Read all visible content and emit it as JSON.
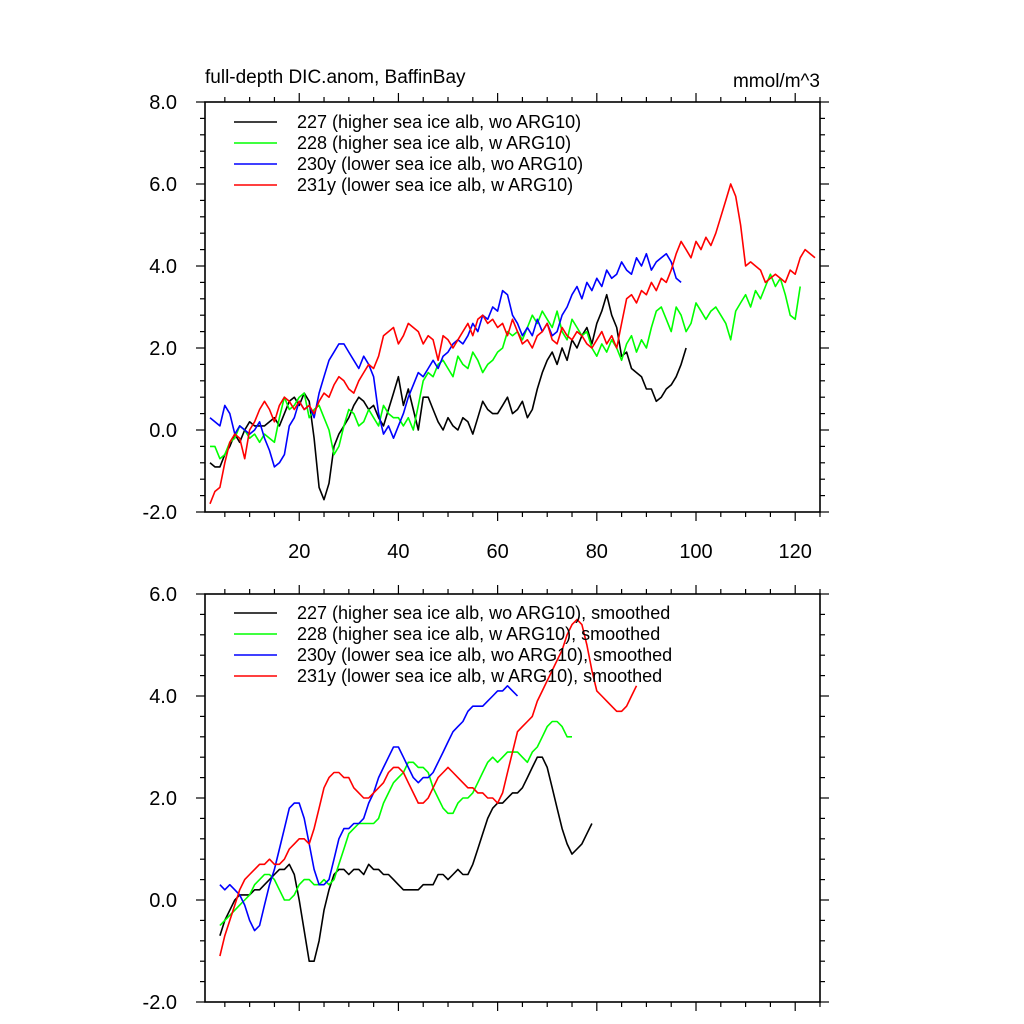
{
  "chart_data": [
    {
      "type": "line",
      "title": "full-depth DIC.anom, BaffinBay",
      "units": "mmol/m^3",
      "xlim": [
        1,
        125
      ],
      "ylim": [
        -2.0,
        8.0
      ],
      "x_ticks": [
        20,
        40,
        60,
        80,
        100,
        120
      ],
      "x_tick_labels": [
        "20",
        "40",
        "60",
        "80",
        "100",
        "120"
      ],
      "y_ticks": [
        -2.0,
        0.0,
        2.0,
        4.0,
        6.0,
        8.0
      ],
      "y_tick_labels": [
        "-2.0",
        "0.0",
        "2.0",
        "4.0",
        "6.0",
        "8.0"
      ],
      "series": [
        {
          "name": "227 (higher sea ice alb, wo ARG10)",
          "color": "#000000",
          "x_start": 2,
          "values": [
            -0.8,
            -0.9,
            -0.9,
            -0.6,
            -0.4,
            -0.1,
            -0.3,
            0.0,
            0.2,
            0.1,
            0.1,
            0.1,
            0.2,
            0.3,
            0.1,
            0.4,
            0.7,
            0.8,
            0.6,
            0.9,
            0.7,
            -0.2,
            -1.4,
            -1.7,
            -1.3,
            -0.4,
            -0.1,
            0.1,
            0.3,
            0.6,
            0.8,
            0.7,
            0.5,
            0.6,
            0.3,
            0.1,
            0.5,
            0.9,
            1.3,
            0.6,
            1.0,
            0.5,
            0.0,
            0.8,
            0.8,
            0.5,
            0.2,
            0.0,
            0.3,
            0.1,
            0.0,
            0.3,
            0.2,
            -0.1,
            0.3,
            0.7,
            0.5,
            0.4,
            0.4,
            0.6,
            0.8,
            0.4,
            0.5,
            0.7,
            0.3,
            0.5,
            1.0,
            1.4,
            1.7,
            1.9,
            1.6,
            2.0,
            1.7,
            2.2,
            2.0,
            2.3,
            2.5,
            2.1,
            2.6,
            2.9,
            3.3,
            2.8,
            2.5,
            1.8,
            1.9,
            1.5,
            1.4,
            1.3,
            1.0,
            1.0,
            0.7,
            0.8,
            1.0,
            1.1,
            1.3,
            1.6,
            2.0
          ],
          "end_label": ""
        },
        {
          "name": "228 (higher sea ice alb, w ARG10)",
          "color": "#00ff00",
          "x_start": 2,
          "values": [
            -0.4,
            -0.4,
            -0.7,
            -0.6,
            -0.3,
            -0.2,
            0.1,
            0.0,
            -0.2,
            -0.1,
            -0.3,
            -0.1,
            -0.2,
            -0.3,
            0.3,
            0.8,
            0.5,
            0.6,
            0.8,
            0.9,
            0.3,
            0.5,
            0.6,
            0.3,
            0.0,
            -0.6,
            -0.4,
            0.1,
            0.5,
            0.4,
            0.1,
            0.2,
            0.5,
            0.3,
            0.1,
            0.6,
            0.4,
            0.3,
            0.3,
            0.1,
            0.3,
            0.0,
            0.6,
            1.2,
            1.4,
            1.3,
            1.6,
            1.7,
            1.5,
            1.3,
            1.8,
            1.6,
            1.5,
            1.9,
            1.7,
            1.4,
            1.6,
            1.7,
            1.9,
            2.0,
            2.4,
            2.3,
            2.4,
            2.2,
            2.5,
            2.8,
            2.6,
            2.9,
            2.7,
            2.5,
            2.9,
            2.4,
            2.2,
            2.7,
            2.5,
            2.3,
            2.4,
            2.0,
            1.8,
            2.1,
            1.9,
            2.2,
            2.0,
            1.7,
            2.1,
            2.3,
            1.9,
            2.2,
            2.0,
            2.5,
            2.9,
            3.0,
            2.7,
            2.4,
            3.0,
            2.8,
            2.4,
            2.6,
            3.1,
            2.9,
            2.7,
            2.9,
            3.0,
            2.8,
            2.6,
            2.2,
            2.9,
            3.1,
            3.3,
            3.0,
            3.4,
            3.2,
            3.5,
            3.8,
            3.5,
            3.7,
            3.3,
            2.8,
            2.7,
            3.5
          ],
          "end_label": ""
        },
        {
          "name": "230y (lower sea ice alb, wo ARG10)",
          "color": "#0000ff",
          "x_start": 2,
          "values": [
            0.3,
            0.2,
            0.1,
            0.6,
            0.4,
            -0.1,
            0.1,
            0.0,
            -0.1,
            0.0,
            0.2,
            -0.2,
            -0.5,
            -0.9,
            -0.8,
            -0.6,
            0.1,
            0.3,
            0.7,
            0.5,
            0.6,
            0.3,
            0.9,
            1.3,
            1.7,
            1.9,
            2.1,
            2.1,
            1.9,
            1.7,
            1.5,
            1.8,
            1.6,
            1.3,
            0.4,
            -0.1,
            0.1,
            -0.2,
            0.1,
            0.4,
            0.8,
            1.1,
            1.4,
            1.3,
            1.5,
            1.7,
            1.5,
            1.8,
            1.9,
            2.1,
            2.2,
            2.1,
            2.3,
            2.6,
            2.4,
            2.8,
            2.7,
            3.0,
            2.9,
            3.4,
            3.3,
            2.8,
            2.6,
            2.3,
            2.5,
            2.3,
            2.7,
            2.4,
            2.6,
            2.3,
            2.4,
            2.8,
            3.0,
            3.3,
            3.5,
            3.2,
            3.6,
            3.4,
            3.7,
            3.5,
            3.9,
            3.7,
            3.8,
            4.1,
            3.9,
            3.8,
            4.2,
            4.0,
            4.3,
            3.9,
            4.1,
            4.2,
            4.3,
            4.1,
            3.7,
            3.6
          ],
          "end_label": ""
        },
        {
          "name": "231y (lower sea ice alb, w ARG10)",
          "color": "#ff0000",
          "x_start": 2,
          "values": [
            -1.8,
            -1.5,
            -1.4,
            -0.8,
            -0.3,
            -0.1,
            -0.2,
            -0.7,
            0.0,
            0.2,
            0.5,
            0.7,
            0.5,
            0.2,
            0.6,
            0.8,
            0.7,
            0.5,
            0.7,
            0.5,
            0.6,
            0.4,
            0.7,
            0.9,
            0.8,
            1.1,
            1.3,
            1.2,
            1.0,
            0.9,
            1.2,
            1.4,
            1.6,
            1.5,
            1.8,
            2.3,
            2.4,
            2.5,
            2.1,
            2.3,
            2.6,
            2.5,
            2.4,
            2.1,
            2.3,
            2.2,
            1.7,
            2.3,
            2.2,
            2.0,
            2.2,
            2.4,
            2.6,
            2.3,
            2.7,
            2.8,
            2.6,
            2.7,
            2.5,
            2.6,
            2.3,
            2.7,
            2.4,
            2.1,
            2.2,
            2.0,
            2.3,
            2.4,
            2.6,
            2.2,
            2.1,
            2.5,
            2.3,
            2.2,
            2.4,
            2.3,
            2.1,
            2.0,
            2.2,
            2.4,
            2.1,
            2.3,
            2.0,
            2.6,
            3.2,
            3.3,
            3.1,
            3.4,
            3.3,
            3.6,
            3.4,
            3.7,
            3.6,
            3.9,
            4.3,
            4.6,
            4.4,
            4.2,
            4.6,
            4.4,
            4.7,
            4.5,
            4.8,
            5.2,
            5.6,
            6.0,
            5.7,
            5.0,
            4.0,
            4.1,
            4.0,
            3.9,
            3.6,
            3.7,
            3.8,
            3.7,
            3.6,
            3.9,
            3.8,
            4.2,
            4.4,
            4.3,
            4.2
          ],
          "end_label": ""
        }
      ]
    },
    {
      "type": "line",
      "title": "",
      "units": "",
      "xlim": [
        1,
        125
      ],
      "ylim": [
        -2.0,
        6.0
      ],
      "x_ticks": [
        20,
        40,
        60,
        80,
        100,
        120
      ],
      "x_tick_labels": [],
      "y_ticks": [
        -2.0,
        0.0,
        2.0,
        4.0,
        6.0
      ],
      "y_tick_labels": [
        "-2.0",
        "0.0",
        "2.0",
        "4.0",
        "6.0"
      ],
      "series": [
        {
          "name": "227 (higher sea ice alb, wo ARG10), smoothed",
          "color": "#000000",
          "x_start": 4,
          "values": [
            -0.7,
            -0.4,
            -0.2,
            0.0,
            0.1,
            0.1,
            0.1,
            0.2,
            0.2,
            0.3,
            0.4,
            0.5,
            0.6,
            0.6,
            0.7,
            0.5,
            0.0,
            -0.6,
            -1.2,
            -1.2,
            -0.8,
            -0.2,
            0.2,
            0.5,
            0.6,
            0.6,
            0.5,
            0.6,
            0.6,
            0.5,
            0.7,
            0.6,
            0.6,
            0.5,
            0.5,
            0.4,
            0.3,
            0.2,
            0.2,
            0.2,
            0.2,
            0.3,
            0.3,
            0.3,
            0.5,
            0.5,
            0.4,
            0.5,
            0.6,
            0.5,
            0.5,
            0.7,
            1.0,
            1.3,
            1.6,
            1.8,
            1.9,
            1.9,
            2.0,
            2.1,
            2.1,
            2.2,
            2.4,
            2.6,
            2.8,
            2.8,
            2.6,
            2.2,
            1.8,
            1.4,
            1.1,
            0.9,
            1.0,
            1.1,
            1.3,
            1.5
          ],
          "end_label": ""
        },
        {
          "name": "228 (higher sea ice alb, w ARG10), smoothed",
          "color": "#00ff00",
          "x_start": 4,
          "values": [
            -0.5,
            -0.4,
            -0.3,
            -0.2,
            -0.1,
            0.0,
            0.1,
            0.3,
            0.4,
            0.5,
            0.5,
            0.4,
            0.2,
            0.0,
            0.0,
            0.1,
            0.3,
            0.4,
            0.4,
            0.3,
            0.3,
            0.4,
            0.3,
            0.4,
            0.7,
            1.0,
            1.3,
            1.4,
            1.5,
            1.5,
            1.5,
            1.5,
            1.6,
            1.9,
            2.1,
            2.3,
            2.4,
            2.5,
            2.7,
            2.7,
            2.6,
            2.6,
            2.5,
            2.2,
            2.0,
            1.8,
            1.7,
            1.7,
            1.9,
            2.0,
            2.0,
            2.1,
            2.3,
            2.5,
            2.7,
            2.8,
            2.7,
            2.8,
            2.9,
            2.9,
            2.9,
            2.8,
            2.7,
            2.9,
            3.0,
            3.2,
            3.4,
            3.5,
            3.5,
            3.4,
            3.2,
            3.2
          ],
          "end_label": ""
        },
        {
          "name": "230y (lower sea ice alb, wo ARG10), smoothed",
          "color": "#0000ff",
          "x_start": 4,
          "values": [
            0.3,
            0.2,
            0.3,
            0.2,
            0.1,
            -0.1,
            -0.4,
            -0.6,
            -0.5,
            -0.1,
            0.3,
            0.6,
            1.0,
            1.4,
            1.8,
            1.9,
            1.9,
            1.6,
            1.1,
            0.6,
            0.3,
            0.3,
            0.4,
            0.8,
            1.2,
            1.4,
            1.4,
            1.5,
            1.5,
            1.6,
            1.9,
            2.1,
            2.4,
            2.6,
            2.8,
            3.0,
            3.0,
            2.8,
            2.6,
            2.4,
            2.3,
            2.4,
            2.4,
            2.5,
            2.7,
            2.9,
            3.1,
            3.3,
            3.4,
            3.5,
            3.7,
            3.8,
            3.8,
            3.8,
            3.9,
            4.0,
            4.1,
            4.1,
            4.2,
            4.1,
            4.0
          ],
          "end_label": ""
        },
        {
          "name": "231y (lower sea ice alb, w ARG10), smoothed",
          "color": "#ff0000",
          "x_start": 4,
          "values": [
            -1.1,
            -0.7,
            -0.4,
            -0.1,
            0.2,
            0.4,
            0.5,
            0.6,
            0.7,
            0.7,
            0.8,
            0.7,
            0.7,
            0.8,
            1.0,
            1.1,
            1.2,
            1.2,
            1.1,
            1.4,
            1.8,
            2.2,
            2.4,
            2.5,
            2.5,
            2.4,
            2.4,
            2.2,
            2.1,
            2.0,
            2.0,
            2.1,
            2.2,
            2.3,
            2.5,
            2.6,
            2.6,
            2.5,
            2.3,
            2.1,
            1.9,
            1.9,
            2.0,
            2.2,
            2.4,
            2.5,
            2.6,
            2.5,
            2.4,
            2.3,
            2.2,
            2.2,
            2.1,
            2.1,
            2.0,
            2.0,
            1.9,
            2.1,
            2.5,
            2.9,
            3.3,
            3.4,
            3.5,
            3.6,
            3.9,
            4.1,
            4.3,
            4.5,
            4.7,
            4.9,
            5.2,
            5.4,
            5.5,
            5.4,
            5.0,
            4.5,
            4.1,
            4.0,
            3.9,
            3.8,
            3.7,
            3.7,
            3.8,
            4.0,
            4.2
          ],
          "end_label": ""
        }
      ]
    }
  ]
}
